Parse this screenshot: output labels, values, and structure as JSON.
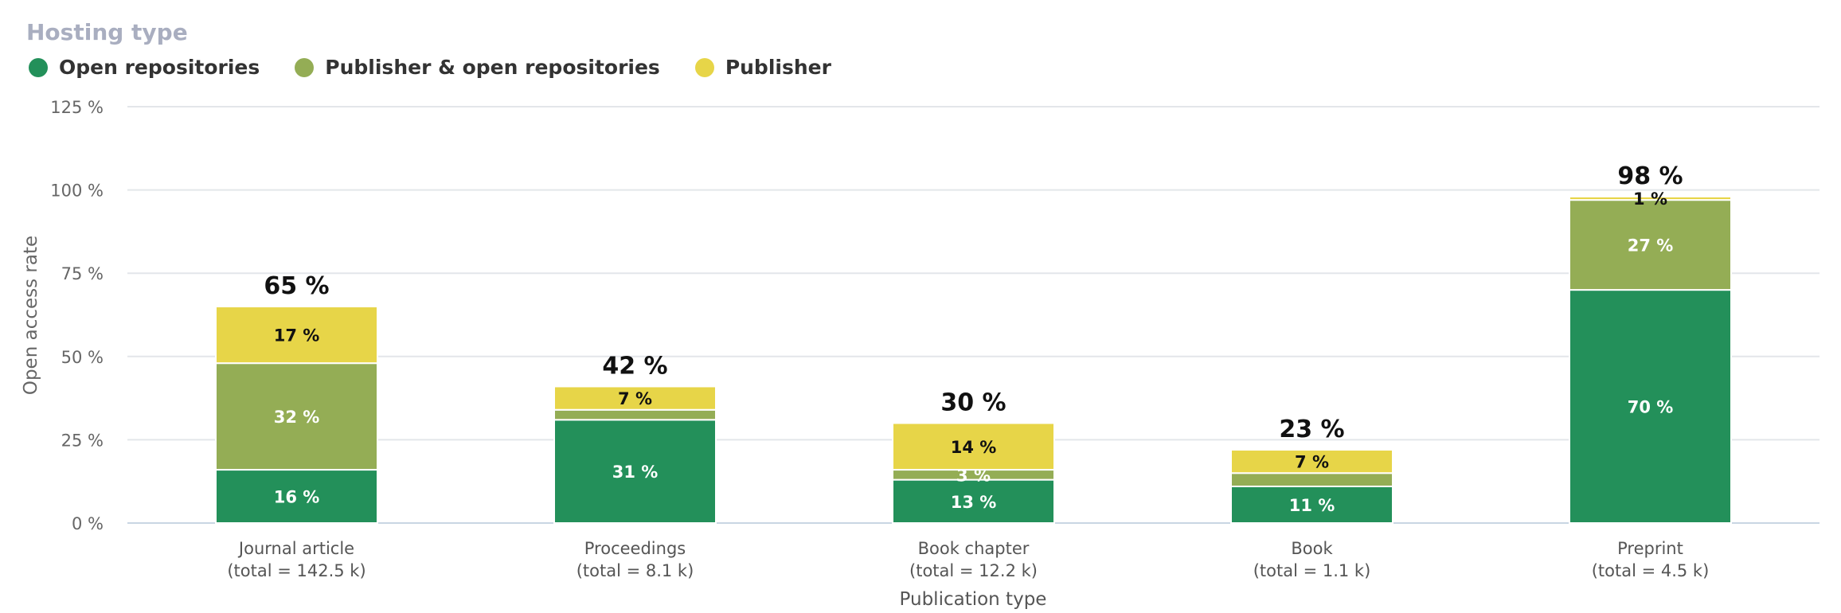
{
  "legend": {
    "title": "Hosting type",
    "items": [
      {
        "label": "Open repositories",
        "color": "#23905a"
      },
      {
        "label": "Publisher & open repositories",
        "color": "#94ad55"
      },
      {
        "label": "Publisher",
        "color": "#e7d548"
      }
    ]
  },
  "chart_data": {
    "type": "bar",
    "stacked": true,
    "xlabel": "Publication type",
    "ylabel": "Open access rate",
    "ylim": [
      0,
      125
    ],
    "yticks": [
      "0 %",
      "25 %",
      "50 %",
      "75 %",
      "100 %",
      "125 %"
    ],
    "categories": [
      "Journal article",
      "Proceedings",
      "Book chapter",
      "Book",
      "Preprint"
    ],
    "category_totals": [
      "(total = 142.5 k)",
      "(total = 8.1 k)",
      "(total = 12.2 k)",
      "(total = 1.1 k)",
      "(total = 4.5 k)"
    ],
    "totals": [
      "65 %",
      "42 %",
      "30 %",
      "23 %",
      "98 %"
    ],
    "series": [
      {
        "name": "Open repositories",
        "color": "#23905a",
        "label_color": "#ffffff",
        "values": [
          16,
          31,
          13,
          11,
          70
        ],
        "labels": [
          "16 %",
          "31 %",
          "13 %",
          "11 %",
          "70 %"
        ]
      },
      {
        "name": "Publisher & open repositories",
        "color": "#94ad55",
        "label_color": "#ffffff",
        "values": [
          32,
          3,
          3,
          4,
          27
        ],
        "labels": [
          "32 %",
          "",
          "3 %",
          "",
          "27 %"
        ]
      },
      {
        "name": "Publisher",
        "color": "#e7d548",
        "label_color": "#111111",
        "values": [
          17,
          7,
          14,
          7,
          1
        ],
        "labels": [
          "17 %",
          "7 %",
          "14 %",
          "7 %",
          "1 %"
        ]
      }
    ],
    "grid": true,
    "legend_position": "top-left"
  }
}
